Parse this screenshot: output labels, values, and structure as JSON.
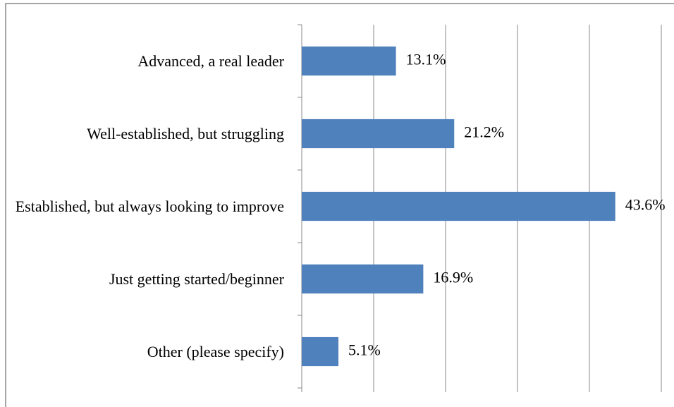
{
  "chart_data": {
    "type": "bar",
    "orientation": "horizontal",
    "categories": [
      "Advanced, a real leader",
      "Well-established, but struggling",
      "Established, but always looking to improve",
      "Just getting started/beginner",
      "Other (please specify)"
    ],
    "values": [
      13.1,
      21.2,
      43.6,
      16.9,
      5.1
    ],
    "value_labels": [
      "13.1%",
      "21.2%",
      "43.6%",
      "16.9%",
      "5.1%"
    ],
    "color": "#4f81bd",
    "xlim": [
      0,
      50
    ],
    "xticks": [
      0,
      10,
      20,
      30,
      40,
      50
    ],
    "grid": true
  }
}
